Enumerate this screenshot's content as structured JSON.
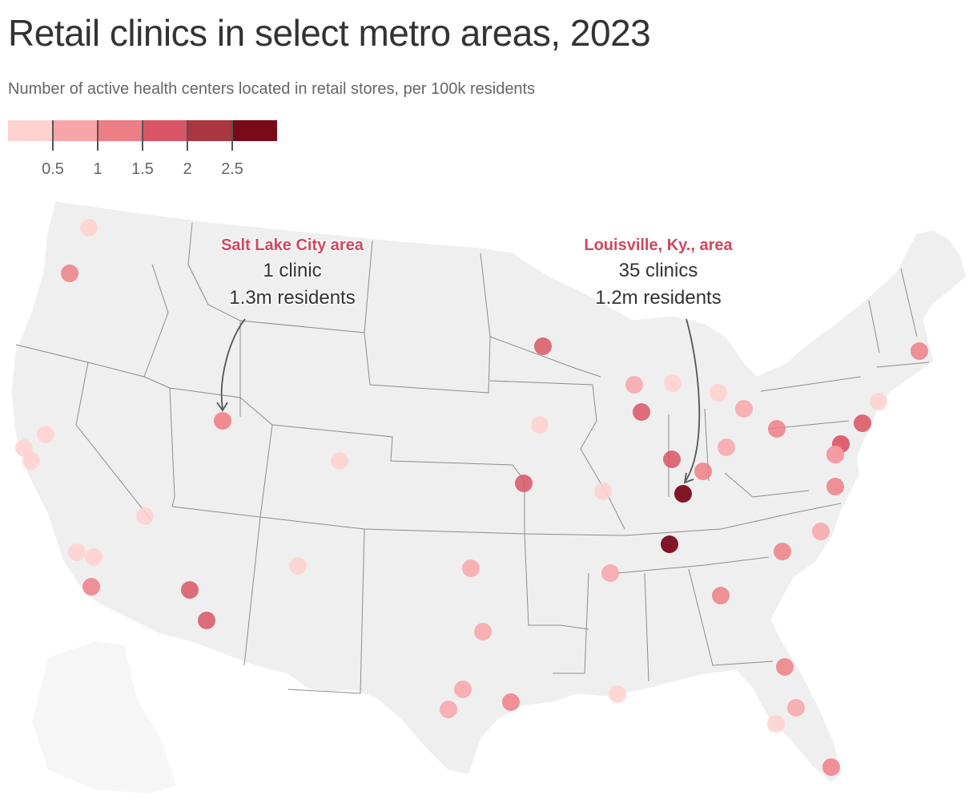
{
  "title": "Retail clinics in select metro areas, 2023",
  "subtitle": "Number of active health centers located in retail stores, per 100k residents",
  "legend": {
    "colors": [
      "#ffd1cf",
      "#f8a5a8",
      "#ee7e86",
      "#d95565",
      "#a93640",
      "#7a0a1a"
    ],
    "thresholds": [
      "0.5",
      "1",
      "1.5",
      "2",
      "2.5"
    ]
  },
  "colors": {
    "land": "#efefef",
    "borders": "#8c8c8c",
    "annotation_accent": "#d1475e",
    "arrow": "#555555"
  },
  "annotations": {
    "salt_lake": {
      "title": "Salt Lake City area",
      "line1": "1 clinic",
      "line2": "1.3m residents"
    },
    "louisville": {
      "title": "Louisville, Ky., area",
      "line1": "35 clinics",
      "line2": "1.2m residents"
    }
  },
  "chart_data": {
    "type": "map",
    "title": "Retail clinics in select metro areas, 2023",
    "subtitle": "Number of active health centers located in retail stores, per 100k residents",
    "color_scale_breaks": [
      0.5,
      1,
      1.5,
      2,
      2.5
    ],
    "legend_placement": "top-left",
    "points": [
      {
        "bin": 0
      },
      {
        "bin": 2
      },
      {
        "bin": 0
      },
      {
        "bin": 0
      },
      {
        "bin": 0
      },
      {
        "bin": 0
      },
      {
        "bin": 0
      },
      {
        "bin": 0
      },
      {
        "bin": 2
      },
      {
        "bin": 0
      },
      {
        "bin": 3
      },
      {
        "bin": 3
      },
      {
        "bin": 0
      },
      {
        "bin": 0
      },
      {
        "bin": 1
      },
      {
        "bin": 1
      },
      {
        "bin": 1
      },
      {
        "bin": 1
      },
      {
        "bin": 3
      },
      {
        "bin": 0
      },
      {
        "bin": 3
      },
      {
        "bin": 0
      },
      {
        "bin": 1
      },
      {
        "bin": 2
      },
      {
        "bin": 0
      },
      {
        "bin": 0
      },
      {
        "bin": 1
      },
      {
        "bin": 3
      },
      {
        "bin": 3
      },
      {
        "bin": 5
      },
      {
        "bin": 5
      },
      {
        "bin": 2
      },
      {
        "bin": 1
      },
      {
        "bin": 0
      },
      {
        "bin": 1
      },
      {
        "bin": 2
      },
      {
        "bin": 0
      },
      {
        "bin": 0
      },
      {
        "bin": 1
      },
      {
        "bin": 3
      },
      {
        "bin": 2
      },
      {
        "bin": 1
      },
      {
        "bin": 2
      },
      {
        "bin": 2
      },
      {
        "bin": 2
      },
      {
        "bin": 1
      },
      {
        "bin": 0
      },
      {
        "bin": 2
      },
      {
        "bin": 2
      },
      {
        "bin": 2
      },
      {
        "bin": 3
      },
      {
        "bin": 3
      },
      {
        "bin": 1
      }
    ]
  }
}
